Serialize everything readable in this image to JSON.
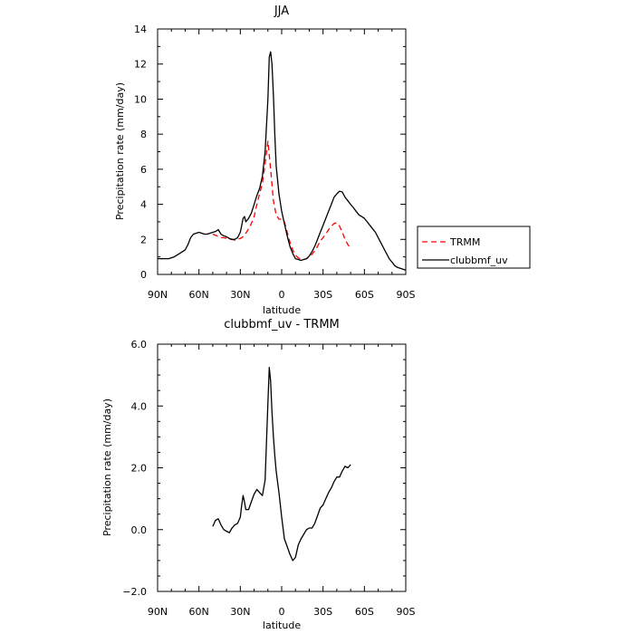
{
  "chart_data": [
    {
      "type": "line",
      "title": "JJA",
      "xlabel": "latitude",
      "ylabel": "Precipitation rate  (mm/day)",
      "xlim": [
        90,
        -90
      ],
      "ylim": [
        0,
        14
      ],
      "xticks": [
        {
          "value": 90,
          "label": "90N"
        },
        {
          "value": 60,
          "label": "60N"
        },
        {
          "value": 30,
          "label": "30N"
        },
        {
          "value": 0,
          "label": "0"
        },
        {
          "value": -30,
          "label": "30S"
        },
        {
          "value": -60,
          "label": "60S"
        },
        {
          "value": -90,
          "label": "90S"
        }
      ],
      "yticks": [
        {
          "value": 0,
          "label": "0"
        },
        {
          "value": 2,
          "label": "2"
        },
        {
          "value": 4,
          "label": "4"
        },
        {
          "value": 6,
          "label": "6"
        },
        {
          "value": 8,
          "label": "8"
        },
        {
          "value": 10,
          "label": "10"
        },
        {
          "value": 12,
          "label": "12"
        },
        {
          "value": 14,
          "label": "14"
        }
      ],
      "grid": false,
      "legend_position": "outside-right",
      "series": [
        {
          "name": "TRMM",
          "color": "#ff0000",
          "dash": true,
          "x": [
            50,
            47,
            44,
            42,
            40,
            38,
            36,
            34,
            32,
            30,
            28,
            26,
            24,
            22,
            20,
            18,
            16,
            14,
            12,
            10,
            8,
            6,
            4,
            2,
            0,
            -2,
            -4,
            -6,
            -8,
            -10,
            -12,
            -14,
            -16,
            -18,
            -20,
            -22,
            -24,
            -26,
            -28,
            -30,
            -32,
            -34,
            -36,
            -38,
            -40,
            -42,
            -44,
            -46,
            -48,
            -50
          ],
          "y": [
            2.3,
            2.2,
            2.1,
            2.1,
            2.05,
            2.0,
            2.0,
            1.95,
            2.0,
            2.05,
            2.15,
            2.35,
            2.6,
            2.9,
            3.3,
            4.0,
            4.6,
            5.2,
            6.3,
            7.6,
            6.0,
            4.2,
            3.4,
            3.15,
            3.15,
            3.0,
            2.4,
            1.85,
            1.4,
            1.1,
            0.95,
            0.85,
            0.85,
            0.9,
            1.0,
            1.15,
            1.35,
            1.6,
            1.9,
            2.1,
            2.3,
            2.55,
            2.75,
            2.9,
            2.95,
            2.75,
            2.4,
            2.0,
            1.7,
            1.5
          ]
        },
        {
          "name": "clubbmf_uv",
          "color": "#000000",
          "dash": false,
          "x": [
            90,
            85,
            82,
            78,
            74,
            70,
            68,
            66,
            64,
            62,
            60,
            58,
            56,
            54,
            52,
            50,
            48,
            46,
            44,
            42,
            40,
            38,
            36,
            34,
            32,
            30,
            29,
            28,
            27,
            26,
            24,
            22,
            20,
            18,
            16,
            14,
            12,
            10,
            9,
            8,
            7,
            6,
            5,
            4,
            2,
            0,
            -2,
            -4,
            -6,
            -8,
            -10,
            -12,
            -14,
            -16,
            -18,
            -20,
            -22,
            -24,
            -26,
            -28,
            -30,
            -32,
            -34,
            -36,
            -38,
            -40,
            -42,
            -44,
            -46,
            -48,
            -50,
            -52,
            -54,
            -56,
            -58,
            -60,
            -62,
            -64,
            -66,
            -68,
            -70,
            -72,
            -74,
            -76,
            -78,
            -80,
            -82,
            -84,
            -86,
            -88,
            -90
          ],
          "y": [
            0.9,
            0.9,
            0.9,
            1.0,
            1.2,
            1.4,
            1.7,
            2.1,
            2.3,
            2.35,
            2.4,
            2.35,
            2.3,
            2.3,
            2.35,
            2.4,
            2.45,
            2.55,
            2.3,
            2.2,
            2.15,
            2.05,
            2.0,
            2.0,
            2.1,
            2.4,
            2.8,
            3.2,
            3.3,
            3.0,
            3.2,
            3.5,
            4.0,
            4.5,
            4.9,
            5.6,
            7.0,
            10.0,
            12.4,
            12.7,
            12.0,
            10.2,
            8.0,
            6.2,
            4.6,
            3.6,
            2.9,
            2.2,
            1.6,
            1.2,
            0.9,
            0.85,
            0.8,
            0.85,
            0.9,
            1.05,
            1.3,
            1.6,
            2.0,
            2.4,
            2.8,
            3.2,
            3.6,
            4.0,
            4.4,
            4.6,
            4.75,
            4.7,
            4.4,
            4.2,
            4.0,
            3.8,
            3.6,
            3.4,
            3.3,
            3.2,
            3.0,
            2.8,
            2.6,
            2.4,
            2.1,
            1.8,
            1.5,
            1.2,
            0.9,
            0.7,
            0.5,
            0.4,
            0.35,
            0.3,
            0.25
          ]
        }
      ]
    },
    {
      "type": "line",
      "title": "clubbmf_uv - TRMM",
      "xlabel": "latitude",
      "ylabel": "Precipitation rate  (mm/day)",
      "xlim": [
        90,
        -90
      ],
      "ylim": [
        -2.0,
        6.0
      ],
      "xticks": [
        {
          "value": 90,
          "label": "90N"
        },
        {
          "value": 60,
          "label": "60N"
        },
        {
          "value": 30,
          "label": "30N"
        },
        {
          "value": 0,
          "label": "0"
        },
        {
          "value": -30,
          "label": "30S"
        },
        {
          "value": -60,
          "label": "60S"
        },
        {
          "value": -90,
          "label": "90S"
        }
      ],
      "yticks": [
        {
          "value": -2.0,
          "label": "−2.0"
        },
        {
          "value": 0.0,
          "label": "0.0"
        },
        {
          "value": 2.0,
          "label": "2.0"
        },
        {
          "value": 4.0,
          "label": "4.0"
        },
        {
          "value": 6.0,
          "label": "6.0"
        }
      ],
      "grid": false,
      "series": [
        {
          "color": "#000000",
          "dash": false,
          "x": [
            50,
            48,
            46,
            44,
            42,
            40,
            38,
            36,
            34,
            32,
            30,
            29,
            28,
            27,
            26,
            24,
            22,
            20,
            18,
            16,
            14,
            12,
            10,
            9,
            8,
            7,
            6,
            5,
            4,
            2,
            0,
            -2,
            -4,
            -6,
            -8,
            -10,
            -12,
            -14,
            -16,
            -18,
            -20,
            -22,
            -24,
            -26,
            -28,
            -30,
            -32,
            -34,
            -36,
            -38,
            -40,
            -42,
            -44,
            -46,
            -48,
            -50
          ],
          "y": [
            0.1,
            0.3,
            0.35,
            0.15,
            0.0,
            -0.05,
            -0.1,
            0.05,
            0.15,
            0.2,
            0.4,
            0.8,
            1.1,
            0.9,
            0.65,
            0.65,
            0.9,
            1.15,
            1.3,
            1.2,
            1.1,
            1.6,
            4.1,
            5.25,
            4.8,
            3.8,
            3.0,
            2.4,
            1.9,
            1.2,
            0.4,
            -0.3,
            -0.55,
            -0.8,
            -1.0,
            -0.9,
            -0.5,
            -0.3,
            -0.15,
            0.0,
            0.05,
            0.05,
            0.2,
            0.45,
            0.7,
            0.8,
            1.0,
            1.2,
            1.35,
            1.55,
            1.7,
            1.7,
            1.9,
            2.05,
            2.0,
            2.1
          ]
        }
      ]
    }
  ]
}
